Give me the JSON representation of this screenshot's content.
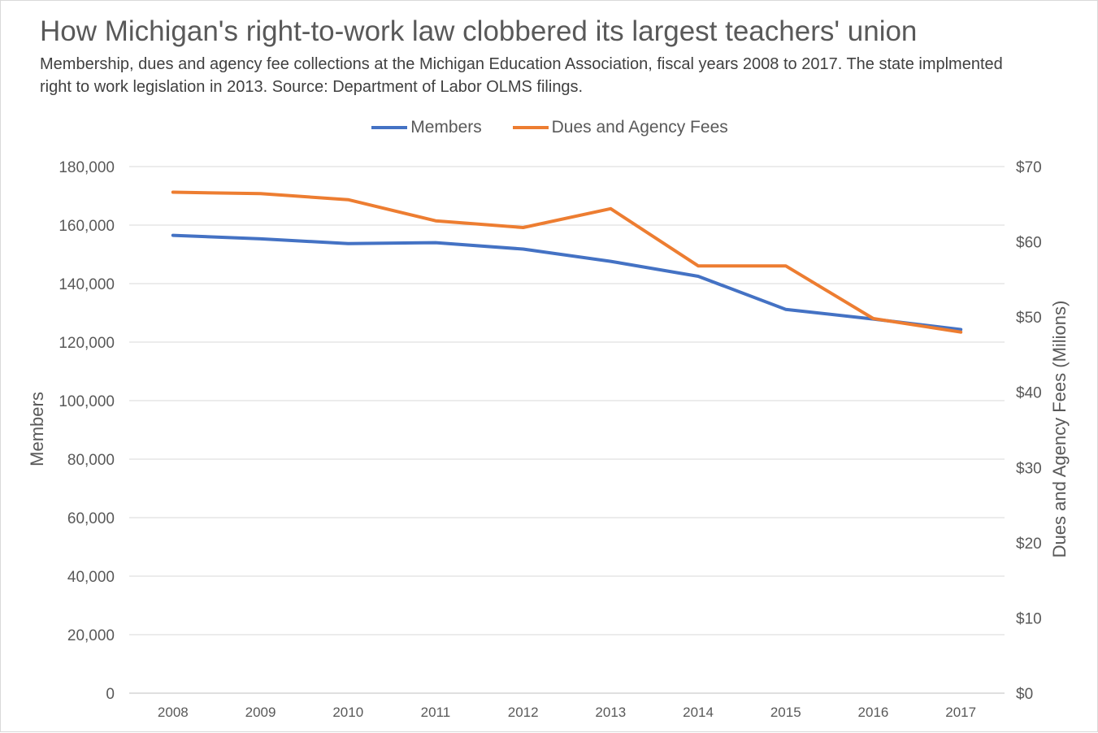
{
  "chart_data": {
    "type": "line",
    "title": "How Michigan's right-to-work law clobbered its largest teachers' union",
    "subtitle": "Membership, dues and agency fee collections at the Michigan Education Association, fiscal years 2008 to 2017. The state implmented right to work legislation in 2013. Source: Department of Labor OLMS filings.",
    "x": [
      "2008",
      "2009",
      "2010",
      "2011",
      "2012",
      "2013",
      "2014",
      "2015",
      "2016",
      "2017"
    ],
    "y_left": {
      "label": "Members",
      "ylim": [
        0,
        180000
      ],
      "ticks": [
        "0",
        "20,000",
        "40,000",
        "60,000",
        "80,000",
        "100,000",
        "120,000",
        "140,000",
        "160,000",
        "180,000"
      ]
    },
    "y_right": {
      "label": "Dues and Agency Fees (Milions)",
      "ylim": [
        0,
        70
      ],
      "ticks": [
        "$0",
        "$10",
        "$20",
        "$30",
        "$40",
        "$50",
        "$60",
        "$70"
      ]
    },
    "series": [
      {
        "name": "Members",
        "axis": "left",
        "color": "#4472c4",
        "values": [
          156500,
          155300,
          153700,
          154000,
          151800,
          147600,
          142500,
          131200,
          127900,
          124300
        ]
      },
      {
        "name": "Dues and Agency Fees",
        "axis": "right",
        "color": "#ed7d31",
        "values": [
          66.6,
          66.4,
          65.6,
          62.8,
          61.9,
          64.4,
          56.8,
          56.8,
          49.8,
          48.0
        ]
      }
    ],
    "grid": true,
    "legend_position": "top"
  }
}
